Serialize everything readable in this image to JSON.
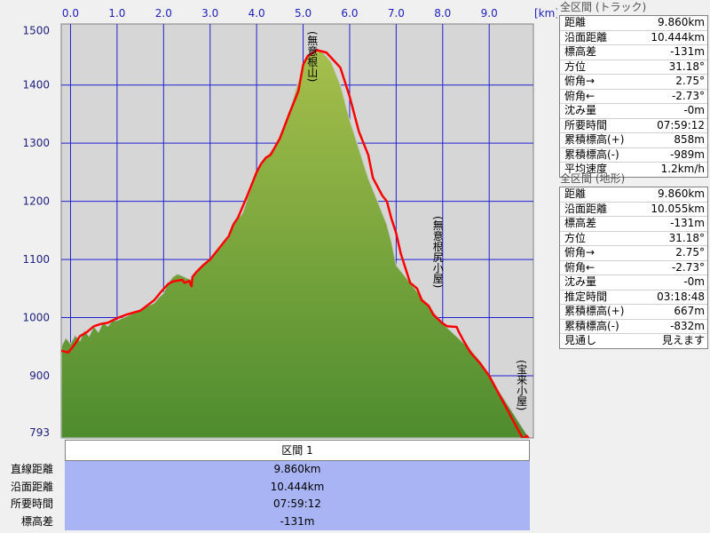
{
  "chart_data": {
    "type": "area",
    "x_unit": "[km]",
    "x_ticks": [
      "0.0",
      "1.0",
      "2.0",
      "3.0",
      "4.0",
      "5.0",
      "6.0",
      "7.0",
      "8.0",
      "9.0"
    ],
    "y_ticks": [
      "1500",
      "1400",
      "1300",
      "1200",
      "1100",
      "1000",
      "900",
      "793"
    ],
    "xlim": [
      -0.2,
      9.95
    ],
    "ylim": [
      793,
      1505
    ],
    "series": [
      {
        "name": "",
        "x": [
          -0.2,
          -0.05,
          0.1,
          0.2,
          0.35,
          0.5,
          0.65,
          0.8,
          1.0,
          1.2,
          1.5,
          1.8,
          1.95,
          2.1,
          2.2,
          2.4,
          2.45,
          2.55,
          2.6,
          2.62,
          2.7,
          2.85,
          3.0,
          3.2,
          3.4,
          3.5,
          3.6,
          3.8,
          4.0,
          4.1,
          4.2,
          4.3,
          4.5,
          4.7,
          4.9,
          5.0,
          5.1,
          5.3,
          5.5,
          5.8,
          6.0,
          6.2,
          6.4,
          6.5,
          6.7,
          6.8,
          6.9,
          7.0,
          7.1,
          7.3,
          7.45,
          7.55,
          7.7,
          7.8,
          8.0,
          8.1,
          8.3,
          8.35,
          8.45,
          8.6,
          8.8,
          9.0,
          9.2,
          9.4,
          9.5,
          9.6,
          9.7,
          9.75,
          9.8,
          9.85
        ],
        "y": [
          943,
          940,
          955,
          968,
          975,
          985,
          989,
          991,
          999,
          1005,
          1012,
          1030,
          1045,
          1058,
          1062,
          1065,
          1060,
          1063,
          1054,
          1070,
          1078,
          1090,
          1100,
          1120,
          1140,
          1160,
          1172,
          1210,
          1250,
          1265,
          1275,
          1280,
          1308,
          1350,
          1390,
          1435,
          1450,
          1460,
          1456,
          1430,
          1380,
          1320,
          1280,
          1240,
          1210,
          1200,
          1170,
          1145,
          1110,
          1060,
          1050,
          1030,
          1020,
          1005,
          990,
          985,
          984,
          975,
          960,
          940,
          922,
          900,
          870,
          840,
          825,
          810,
          795,
          790,
          797,
          793
        ]
      },
      {
        "name": "",
        "x": [
          -0.2,
          -0.1,
          0.0,
          0.1,
          0.2,
          0.3,
          0.4,
          0.5,
          0.6,
          0.7,
          0.8,
          0.9,
          1.0,
          1.2,
          1.4,
          1.6,
          1.8,
          1.9,
          2.0,
          2.1,
          2.2,
          2.3,
          2.4,
          2.5,
          2.6,
          2.7,
          2.8,
          2.9,
          3.0,
          3.2,
          3.4,
          3.5,
          3.7,
          3.8,
          4.0,
          4.2,
          4.4,
          4.6,
          4.8,
          5.0,
          5.1,
          5.2,
          5.4,
          5.6,
          5.8,
          6.0,
          6.2,
          6.4,
          6.6,
          6.8,
          6.9,
          7.0,
          7.2,
          7.4,
          7.6,
          7.8,
          8.0,
          8.2,
          8.4,
          8.6,
          8.8,
          9.0,
          9.2,
          9.4,
          9.6,
          9.8,
          9.85
        ],
        "y": [
          950,
          965,
          955,
          970,
          960,
          978,
          968,
          985,
          975,
          992,
          985,
          995,
          995,
          1002,
          1010,
          1018,
          1025,
          1035,
          1042,
          1060,
          1070,
          1075,
          1072,
          1068,
          1065,
          1080,
          1088,
          1095,
          1100,
          1118,
          1138,
          1160,
          1180,
          1205,
          1250,
          1275,
          1295,
          1330,
          1380,
          1435,
          1450,
          1460,
          1458,
          1440,
          1400,
          1340,
          1290,
          1240,
          1200,
          1160,
          1130,
          1090,
          1070,
          1050,
          1030,
          1010,
          990,
          975,
          960,
          945,
          925,
          900,
          875,
          850,
          825,
          800,
          793
        ]
      }
    ],
    "peaks": [
      {
        "label": "(無意根山)",
        "x": 5.1
      },
      {
        "label": "(無意根尻小屋)",
        "x": 7.8
      },
      {
        "label": "(宝来小屋)",
        "x": 9.6
      }
    ]
  },
  "panels": {
    "track": {
      "title": "全区間 (トラック)",
      "rows": [
        {
          "label": "距離",
          "value": "9.860km"
        },
        {
          "label": "沿面距離",
          "value": "10.444km"
        },
        {
          "label": "標高差",
          "value": "-131m"
        },
        {
          "label": "方位",
          "value": "31.18°"
        },
        {
          "label": "俯角→",
          "value": "2.75°"
        },
        {
          "label": "俯角←",
          "value": "-2.73°"
        },
        {
          "label": "沈み量",
          "value": "-0m"
        },
        {
          "label": "所要時間",
          "value": "07:59:12"
        },
        {
          "label": "累積標高(+)",
          "value": "858m"
        },
        {
          "label": "累積標高(-)",
          "value": "-989m"
        },
        {
          "label": "平均速度",
          "value": "1.2km/h"
        }
      ]
    },
    "terrain": {
      "title": "全区間 (地形)",
      "rows": [
        {
          "label": "距離",
          "value": "9.860km"
        },
        {
          "label": "沿面距離",
          "value": "10.055km"
        },
        {
          "label": "標高差",
          "value": "-131m"
        },
        {
          "label": "方位",
          "value": "31.18°"
        },
        {
          "label": "俯角→",
          "value": "2.75°"
        },
        {
          "label": "俯角←",
          "value": "-2.73°"
        },
        {
          "label": "沈み量",
          "value": "-0m"
        },
        {
          "label": "推定時間",
          "value": "03:18:48"
        },
        {
          "label": "累積標高(+)",
          "value": "667m"
        },
        {
          "label": "累積標高(-)",
          "value": "-832m"
        },
        {
          "label": "見通し",
          "value": "見えます"
        }
      ]
    }
  },
  "section": {
    "header": "区間 1",
    "rows": [
      {
        "label": "直線距離",
        "value": "9.860km"
      },
      {
        "label": "沿面距離",
        "value": "10.444km"
      },
      {
        "label": "所要時間",
        "value": "07:59:12"
      },
      {
        "label": "標高差",
        "value": "-131m"
      }
    ]
  },
  "colors": {
    "track": "#ff0000",
    "grid": "#2020d0",
    "plot_bg": "#d6d6d6",
    "fill_top": "#a6bf4c",
    "fill_bottom": "#4e8c2e",
    "section_bg": "#a9b4f5"
  }
}
